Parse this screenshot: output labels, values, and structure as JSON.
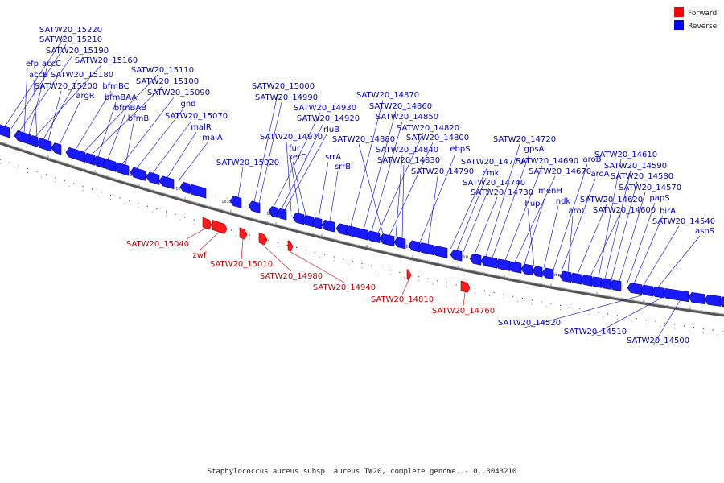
{
  "legend": {
    "forward_label": "Forward",
    "reverse_label": "Reverse",
    "forward_color": "#ff0000",
    "reverse_color": "#0000ff"
  },
  "caption": "Staphylococcus aureus subsp. aureus TW20, complete genome. - 0..3043210",
  "scale_labels": [
    "1655 kbp",
    "1650 kbp",
    "1645 kbp",
    "1640 kbp",
    "1635 kbp",
    "1630 kbp",
    "1625 kbp",
    "1620 kbp",
    "1615 kbp",
    "1610 kbp",
    "1605 kbp",
    "1600 kbp",
    "1595 kbp",
    "1590 kbp",
    "1585 kbp"
  ],
  "reverse_genes": [
    "SATW20_15220",
    "SATW20_15210",
    "SATW20_15190",
    "efp",
    "accC",
    "SATW20_15160",
    "accB",
    "SATW20_15180",
    "SATW20_15200",
    "argR",
    "bfmBC",
    "SATW20_15110",
    "SATW20_15100",
    "bfmBAA",
    "bfmBAB",
    "SATW20_15090",
    "bfmB",
    "gnd",
    "SATW20_15070",
    "malR",
    "malA",
    "SATW20_15020",
    "SATW20_15000",
    "SATW20_14990",
    "SATW20_14930",
    "SATW20_14920",
    "rluB",
    "SATW20_14970",
    "fur",
    "xerD",
    "srrA",
    "srrB",
    "SATW20_14870",
    "SATW20_14860",
    "SATW20_14850",
    "SATW20_14820",
    "SATW20_14880",
    "SATW20_14800",
    "SATW20_14840",
    "SATW20_14830",
    "ebpS",
    "SATW20_14790",
    "SATW20_14770",
    "cmk",
    "SATW20_14740",
    "SATW20_14730",
    "SATW20_14720",
    "gpsA",
    "SATW20_14690",
    "SATW20_14670",
    "menH",
    "hup",
    "ndk",
    "aroB",
    "aroA",
    "aroC",
    "SATW20_14620",
    "SATW20_14600",
    "SATW20_14610",
    "SATW20_14590",
    "SATW20_14580",
    "SATW20_14570",
    "papS",
    "birA",
    "SATW20_14540",
    "asnS",
    "SATW20_14520",
    "SATW20_14510",
    "SATW20_14500"
  ],
  "forward_genes": [
    "SATW20_15040",
    "zwf",
    "SATW20_15010",
    "SATW20_14980",
    "SATW20_14940",
    "SATW20_14810",
    "SATW20_14760"
  ]
}
